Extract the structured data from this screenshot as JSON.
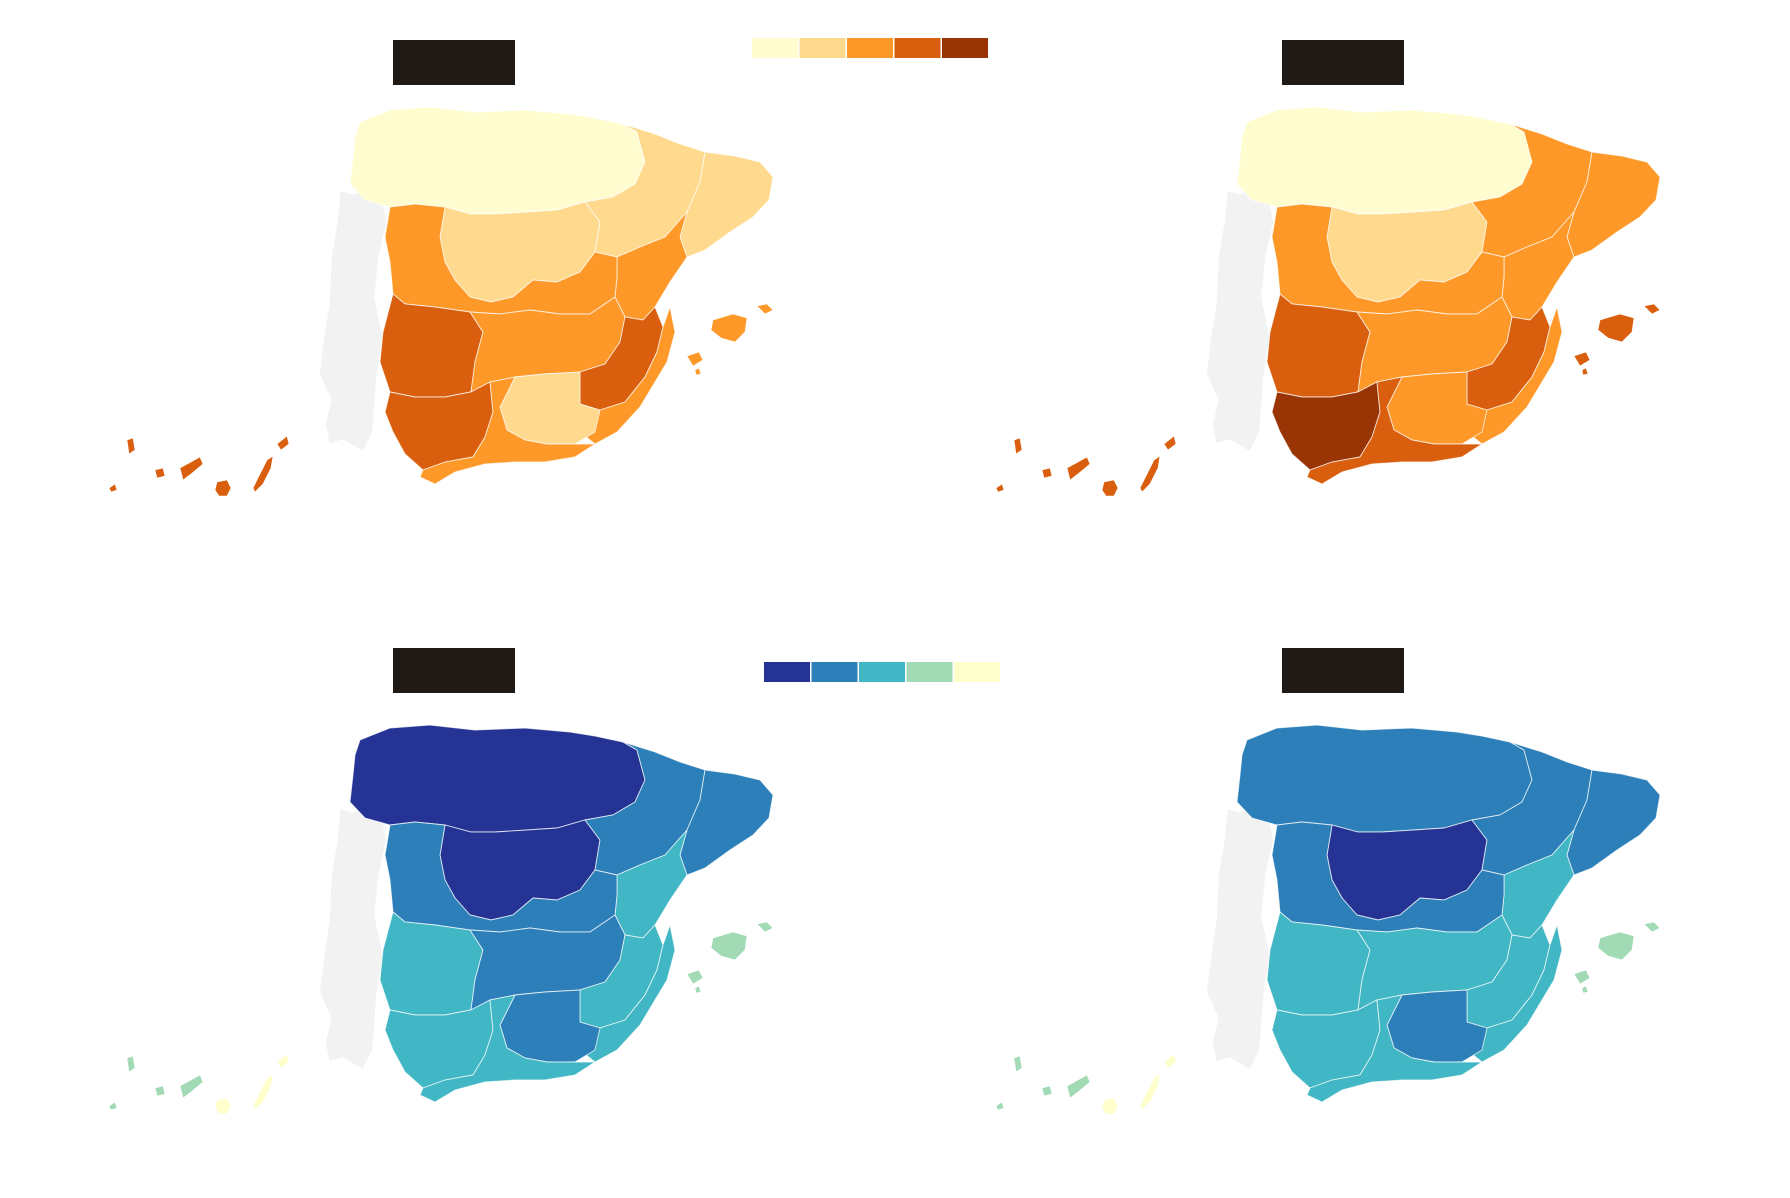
{
  "figure": {
    "panels": [
      {
        "id": "panel-top-left",
        "scheme": "warm",
        "label": "",
        "regions": {
          "north": 0,
          "northcentral": 1,
          "ebro": 1,
          "catalonia": 1,
          "valencia_north": 2,
          "center": 2,
          "extremadura": 3,
          "la_mancha": 2,
          "murcia": 3,
          "andalucia_west": 3,
          "andalucia_east": 2,
          "granada": 1,
          "coast": 2,
          "balearics": 2,
          "canaries": 3
        }
      },
      {
        "id": "panel-top-right",
        "scheme": "warm",
        "label": "",
        "regions": {
          "north": 0,
          "northcentral": 1,
          "ebro": 2,
          "catalonia": 2,
          "valencia_north": 2,
          "center": 2,
          "extremadura": 3,
          "la_mancha": 2,
          "murcia": 3,
          "andalucia_west": 4,
          "andalucia_east": 3,
          "granada": 2,
          "coast": 2,
          "balearics": 3,
          "canaries": 3
        }
      },
      {
        "id": "panel-bottom-left",
        "scheme": "cool",
        "label": "",
        "regions": {
          "north": 0,
          "northcentral": 0,
          "ebro": 1,
          "catalonia": 1,
          "valencia_north": 2,
          "center": 1,
          "extremadura": 2,
          "la_mancha": 1,
          "murcia": 2,
          "andalucia_west": 2,
          "andalucia_east": 2,
          "granada": 1,
          "coast": 2,
          "balearics": 3,
          "canaries": 3
        }
      },
      {
        "id": "panel-bottom-right",
        "scheme": "cool",
        "label": "",
        "regions": {
          "north": 1,
          "northcentral": 0,
          "ebro": 1,
          "catalonia": 1,
          "valencia_north": 2,
          "center": 1,
          "extremadura": 2,
          "la_mancha": 2,
          "murcia": 2,
          "andalucia_west": 2,
          "andalucia_east": 2,
          "granada": 1,
          "coast": 2,
          "balearics": 3,
          "canaries": 3
        }
      }
    ],
    "legends": {
      "warm": [
        "#fffdd0",
        "#fed98e",
        "#fe9929",
        "#d95f0e",
        "#993404"
      ],
      "cool": [
        "#253494",
        "#2c7fb8",
        "#41b6c4",
        "#a1dab4",
        "#ffffcc"
      ]
    },
    "colors": {
      "portugal": "#f2f2f2",
      "label_box": "#201a17",
      "background": "#ffffff"
    }
  }
}
